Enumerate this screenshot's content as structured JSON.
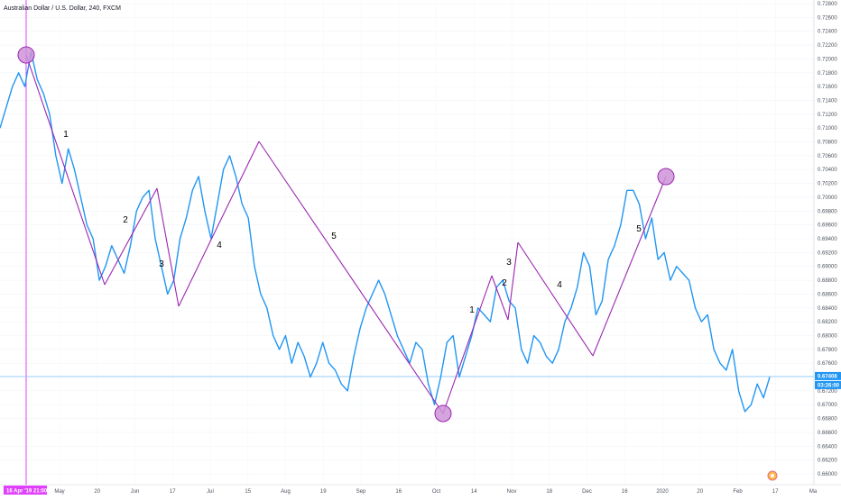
{
  "title": "Australian Dollar / U.S. Dollar, 240, FXCM",
  "colors": {
    "price": "#2196f3",
    "wave": "#9c27b0",
    "marker_fill": "#ce93d8",
    "vline": "#e040fb",
    "hline": "#90caf9",
    "label_bg": "#2196f3",
    "date_tag_bg": "#e040fb"
  },
  "time_tag": "16 Apr '19   21:00",
  "price_tag": "0.67408",
  "countdown_tag": "03:26:00",
  "chart_data": {
    "type": "line",
    "ylim": [
      0.66,
      0.728
    ],
    "y_ticks": [
      "0.72800",
      "0.72600",
      "0.72400",
      "0.72200",
      "0.72000",
      "0.71800",
      "0.71600",
      "0.71400",
      "0.71200",
      "0.71000",
      "0.70800",
      "0.70600",
      "0.70400",
      "0.70200",
      "0.70000",
      "0.69800",
      "0.69600",
      "0.69400",
      "0.69200",
      "0.69000",
      "0.68800",
      "0.68600",
      "0.68400",
      "0.68200",
      "0.68000",
      "0.67800",
      "0.67600",
      "0.67400",
      "0.67200",
      "0.67000",
      "0.66800",
      "0.66600",
      "0.66400",
      "0.66200",
      "0.66000"
    ],
    "x_ticks": [
      "May",
      "20",
      "Jun",
      "17",
      "Jul",
      "15",
      "Aug",
      "19",
      "Sep",
      "16",
      "Oct",
      "14",
      "Nov",
      "18",
      "Dec",
      "16",
      "2020",
      "20",
      "Feb",
      "17",
      "Ma"
    ],
    "current_price": 0.67408,
    "series": [
      {
        "values": [
          0.71,
          0.713,
          0.716,
          0.718,
          0.716,
          0.721,
          0.717,
          0.715,
          0.712,
          0.706,
          0.702,
          0.707,
          0.704,
          0.7,
          0.696,
          0.694,
          0.688,
          0.69,
          0.693,
          0.691,
          0.689,
          0.693,
          0.698,
          0.7,
          0.701,
          0.694,
          0.69,
          0.686,
          0.688,
          0.694,
          0.697,
          0.701,
          0.703,
          0.698,
          0.694,
          0.699,
          0.704,
          0.706,
          0.703,
          0.699,
          0.697,
          0.69,
          0.686,
          0.684,
          0.68,
          0.678,
          0.68,
          0.676,
          0.679,
          0.677,
          0.674,
          0.676,
          0.679,
          0.676,
          0.675,
          0.673,
          0.672,
          0.677,
          0.681,
          0.684,
          0.686,
          0.688,
          0.686,
          0.683,
          0.68,
          0.678,
          0.676,
          0.679,
          0.678,
          0.673,
          0.67,
          0.674,
          0.679,
          0.68,
          0.674,
          0.677,
          0.68,
          0.684,
          0.683,
          0.682,
          0.687,
          0.688,
          0.685,
          0.684,
          0.678,
          0.676,
          0.68,
          0.679,
          0.677,
          0.676,
          0.678,
          0.682,
          0.684,
          0.687,
          0.692,
          0.69,
          0.683,
          0.685,
          0.691,
          0.693,
          0.696,
          0.701,
          0.701,
          0.699,
          0.694,
          0.697,
          0.691,
          0.692,
          0.688,
          0.69,
          0.689,
          0.688,
          0.684,
          0.682,
          0.683,
          0.678,
          0.676,
          0.675,
          0.678,
          0.672,
          0.669,
          0.67,
          0.673,
          0.671,
          0.674
        ]
      }
    ],
    "annotations": {
      "wave_labels": [
        "1",
        "2",
        "3",
        "4",
        "5",
        "1",
        "2",
        "3",
        "4",
        "5"
      ],
      "markers": [
        {
          "date": "16 Apr '19",
          "price": 0.7206
        },
        {
          "date": "Oct",
          "price": 0.668
        },
        {
          "date": "2020",
          "price": 0.7022
        }
      ]
    }
  }
}
